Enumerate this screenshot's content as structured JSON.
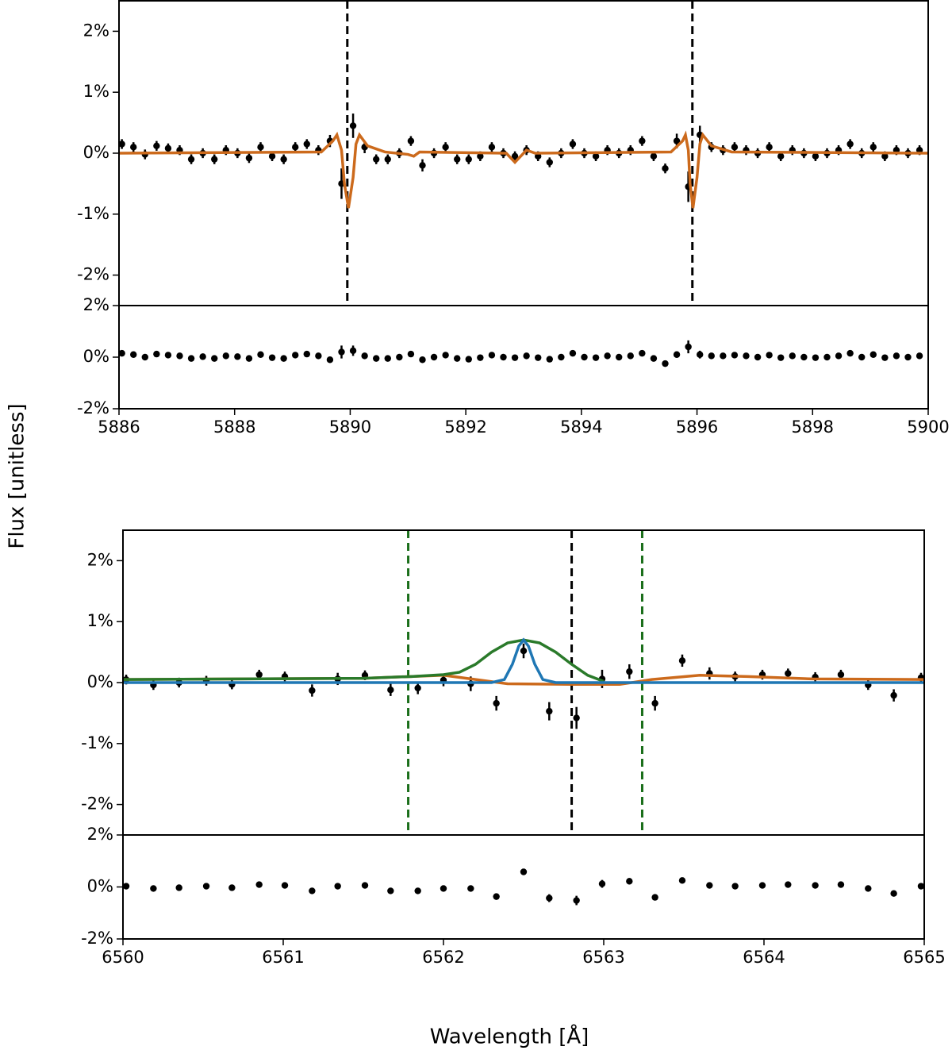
{
  "chart_data": [
    {
      "type": "line",
      "ylabel": "Flux [unitless]",
      "xlim": [
        5886,
        5900
      ],
      "ylim": [
        -2.5,
        2.5
      ],
      "yticks": [
        {
          "value": -2,
          "label": "-2%"
        },
        {
          "value": -1,
          "label": "-1%"
        },
        {
          "value": 0,
          "label": "0%"
        },
        {
          "value": 1,
          "label": "1%"
        },
        {
          "value": 2,
          "label": "2%"
        }
      ],
      "vlines": [
        {
          "x": 5889.95,
          "color": "#000000"
        },
        {
          "x": 5895.92,
          "color": "#000000"
        }
      ],
      "points": {
        "color": "#000000",
        "x": [
          5886.05,
          5886.25,
          5886.45,
          5886.65,
          5886.85,
          5887.05,
          5887.25,
          5887.45,
          5887.65,
          5887.85,
          5888.05,
          5888.25,
          5888.45,
          5888.65,
          5888.85,
          5889.05,
          5889.25,
          5889.45,
          5889.65,
          5889.85,
          5890.05,
          5890.25,
          5890.45,
          5890.65,
          5890.85,
          5891.05,
          5891.25,
          5891.45,
          5891.65,
          5891.85,
          5892.05,
          5892.25,
          5892.45,
          5892.65,
          5892.85,
          5893.05,
          5893.25,
          5893.45,
          5893.65,
          5893.85,
          5894.05,
          5894.25,
          5894.45,
          5894.65,
          5894.85,
          5895.05,
          5895.25,
          5895.45,
          5895.65,
          5895.85,
          5896.05,
          5896.25,
          5896.45,
          5896.65,
          5896.85,
          5897.05,
          5897.25,
          5897.45,
          5897.65,
          5897.85,
          5898.05,
          5898.25,
          5898.45,
          5898.65,
          5898.85,
          5899.05,
          5899.25,
          5899.45,
          5899.65,
          5899.85
        ],
        "values": [
          0.15,
          0.1,
          -0.02,
          0.12,
          0.08,
          0.05,
          -0.1,
          0,
          -0.1,
          0.05,
          0,
          -0.08,
          0.1,
          -0.05,
          -0.1,
          0.1,
          0.15,
          0.05,
          0.2,
          -0.5,
          0.45,
          0.1,
          -0.1,
          -0.1,
          0,
          0.2,
          -0.2,
          0,
          0.1,
          -0.1,
          -0.1,
          -0.05,
          0.1,
          0,
          -0.05,
          0.05,
          -0.05,
          -0.15,
          0,
          0.15,
          0,
          -0.05,
          0.05,
          0,
          0.05,
          0.2,
          -0.05,
          -0.25,
          0.2,
          -0.55,
          0.3,
          0.1,
          0.05,
          0.1,
          0.05,
          0,
          0.1,
          -0.05,
          0.05,
          0,
          -0.05,
          0,
          0.05,
          0.15,
          0,
          0.1,
          -0.05,
          0.05,
          0,
          0.05
        ],
        "errors": [
          0.08,
          0.08,
          0.08,
          0.08,
          0.08,
          0.08,
          0.08,
          0.08,
          0.08,
          0.08,
          0.08,
          0.08,
          0.08,
          0.08,
          0.08,
          0.08,
          0.08,
          0.08,
          0.1,
          0.25,
          0.2,
          0.1,
          0.08,
          0.08,
          0.08,
          0.08,
          0.1,
          0.08,
          0.08,
          0.08,
          0.08,
          0.08,
          0.08,
          0.08,
          0.08,
          0.08,
          0.08,
          0.08,
          0.08,
          0.08,
          0.08,
          0.08,
          0.08,
          0.08,
          0.08,
          0.08,
          0.08,
          0.08,
          0.12,
          0.25,
          0.15,
          0.08,
          0.08,
          0.08,
          0.08,
          0.08,
          0.08,
          0.08,
          0.08,
          0.08,
          0.08,
          0.08,
          0.08,
          0.08,
          0.08,
          0.08,
          0.08,
          0.08,
          0.08,
          0.08
        ]
      },
      "series": [
        {
          "color": "#cc6a1c",
          "x": [
            5886,
            5889.5,
            5889.7,
            5889.77,
            5889.85,
            5889.9,
            5889.97,
            5890.05,
            5890.1,
            5890.16,
            5890.3,
            5890.6,
            5891.0,
            5891.1,
            5891.2,
            5892.7,
            5892.85,
            5892.95,
            5893.05,
            5893.2,
            5895.55,
            5895.75,
            5895.8,
            5895.85,
            5895.88,
            5895.93,
            5896.0,
            5896.05,
            5896.1,
            5896.25,
            5896.6,
            5900
          ],
          "values": [
            0,
            0.02,
            0.2,
            0.3,
            0.05,
            -0.5,
            -0.9,
            -0.4,
            0.15,
            0.3,
            0.12,
            0.02,
            -0.02,
            -0.05,
            0.02,
            0,
            -0.15,
            -0.05,
            0.05,
            0,
            0.02,
            0.2,
            0.3,
            0.05,
            -0.5,
            -0.9,
            -0.4,
            0.15,
            0.3,
            0.12,
            0.02,
            0
          ]
        }
      ]
    },
    {
      "type": "scatter",
      "xlim": [
        5886,
        5900
      ],
      "ylim": [
        -2,
        2
      ],
      "yticks": [
        {
          "value": -2,
          "label": "-2%"
        },
        {
          "value": 0,
          "label": "0%"
        },
        {
          "value": 2,
          "label": "2%"
        }
      ],
      "xticks": [
        5886,
        5888,
        5890,
        5892,
        5894,
        5896,
        5898,
        5900
      ],
      "points": {
        "color": "#000000",
        "x": [
          5886.05,
          5886.25,
          5886.45,
          5886.65,
          5886.85,
          5887.05,
          5887.25,
          5887.45,
          5887.65,
          5887.85,
          5888.05,
          5888.25,
          5888.45,
          5888.65,
          5888.85,
          5889.05,
          5889.25,
          5889.45,
          5889.65,
          5889.85,
          5890.05,
          5890.25,
          5890.45,
          5890.65,
          5890.85,
          5891.05,
          5891.25,
          5891.45,
          5891.65,
          5891.85,
          5892.05,
          5892.25,
          5892.45,
          5892.65,
          5892.85,
          5893.05,
          5893.25,
          5893.45,
          5893.65,
          5893.85,
          5894.05,
          5894.25,
          5894.45,
          5894.65,
          5894.85,
          5895.05,
          5895.25,
          5895.45,
          5895.65,
          5895.85,
          5896.05,
          5896.25,
          5896.45,
          5896.65,
          5896.85,
          5897.05,
          5897.25,
          5897.45,
          5897.65,
          5897.85,
          5898.05,
          5898.25,
          5898.45,
          5898.65,
          5898.85,
          5899.05,
          5899.25,
          5899.45,
          5899.65,
          5899.85
        ],
        "values": [
          0.15,
          0.1,
          0,
          0.12,
          0.08,
          0.05,
          -0.05,
          0.02,
          -0.05,
          0.05,
          0.02,
          -0.05,
          0.1,
          -0.02,
          -0.05,
          0.08,
          0.12,
          0.05,
          -0.1,
          0.2,
          0.25,
          0.05,
          -0.05,
          -0.05,
          0,
          0.12,
          -0.1,
          0,
          0.08,
          -0.05,
          -0.08,
          -0.02,
          0.08,
          0,
          -0.02,
          0.05,
          -0.02,
          -0.08,
          0,
          0.15,
          0,
          -0.02,
          0.05,
          0,
          0.05,
          0.15,
          -0.05,
          -0.25,
          0.1,
          0.4,
          0.1,
          0.05,
          0.05,
          0.08,
          0.05,
          0,
          0.08,
          -0.02,
          0.05,
          0,
          -0.02,
          0,
          0.05,
          0.15,
          0,
          0.1,
          -0.02,
          0.05,
          0,
          0.05
        ],
        "errors": [
          0.08,
          0.08,
          0.08,
          0.08,
          0.08,
          0.08,
          0.08,
          0.08,
          0.08,
          0.08,
          0.08,
          0.08,
          0.08,
          0.08,
          0.08,
          0.08,
          0.08,
          0.08,
          0.1,
          0.25,
          0.2,
          0.1,
          0.08,
          0.08,
          0.08,
          0.08,
          0.1,
          0.08,
          0.08,
          0.08,
          0.08,
          0.08,
          0.08,
          0.08,
          0.08,
          0.08,
          0.08,
          0.08,
          0.08,
          0.08,
          0.08,
          0.08,
          0.08,
          0.08,
          0.08,
          0.08,
          0.08,
          0.08,
          0.12,
          0.25,
          0.15,
          0.08,
          0.08,
          0.08,
          0.08,
          0.08,
          0.08,
          0.08,
          0.08,
          0.08,
          0.08,
          0.08,
          0.08,
          0.08,
          0.08,
          0.08,
          0.08,
          0.08,
          0.08,
          0.08
        ]
      }
    },
    {
      "type": "line",
      "xlim": [
        6560,
        6565
      ],
      "ylim": [
        -2.5,
        2.5
      ],
      "yticks": [
        {
          "value": -2,
          "label": "-2%"
        },
        {
          "value": -1,
          "label": "-1%"
        },
        {
          "value": 0,
          "label": "0%"
        },
        {
          "value": 1,
          "label": "1%"
        },
        {
          "value": 2,
          "label": "2%"
        }
      ],
      "vlines": [
        {
          "x": 6561.78,
          "color": "#1a6e1a"
        },
        {
          "x": 6562.8,
          "color": "#000000"
        },
        {
          "x": 6563.24,
          "color": "#1a6e1a"
        }
      ],
      "points": {
        "color": "#000000",
        "x": [
          6560.02,
          6560.19,
          6560.35,
          6560.52,
          6560.68,
          6560.85,
          6561.01,
          6561.18,
          6561.34,
          6561.51,
          6561.67,
          6561.84,
          6562.0,
          6562.17,
          6562.33,
          6562.5,
          6562.66,
          6562.83,
          6562.99,
          6563.16,
          6563.32,
          6563.49,
          6563.66,
          6563.82,
          6563.99,
          6564.15,
          6564.32,
          6564.48,
          6564.65,
          6564.81,
          6564.98
        ],
        "values": [
          0.05,
          -0.04,
          0,
          0.03,
          -0.03,
          0.13,
          0.1,
          -0.13,
          0.06,
          0.12,
          -0.12,
          -0.09,
          0.04,
          -0.02,
          -0.34,
          0.52,
          -0.47,
          -0.58,
          0.06,
          0.18,
          -0.34,
          0.36,
          0.15,
          0.1,
          0.13,
          0.15,
          0.09,
          0.13,
          -0.04,
          -0.21,
          0.08
        ],
        "errors": [
          0.08,
          0.08,
          0.08,
          0.08,
          0.08,
          0.08,
          0.08,
          0.1,
          0.1,
          0.08,
          0.1,
          0.1,
          0.1,
          0.12,
          0.12,
          0.12,
          0.15,
          0.18,
          0.15,
          0.12,
          0.12,
          0.1,
          0.1,
          0.08,
          0.08,
          0.08,
          0.08,
          0.08,
          0.08,
          0.1,
          0.08
        ]
      },
      "series": [
        {
          "color": "#cc6a1c",
          "x": [
            6560,
            6561.5,
            6561.8,
            6562.0,
            6562.2,
            6562.4,
            6562.8,
            6563.1,
            6563.3,
            6563.6,
            6563.9,
            6564.3,
            6565
          ],
          "values": [
            0.05,
            0.07,
            0.1,
            0.12,
            0.05,
            -0.02,
            -0.03,
            -0.03,
            0.05,
            0.12,
            0.1,
            0.06,
            0.05
          ]
        },
        {
          "color": "#2a7a2a",
          "x": [
            6560,
            6561.5,
            6561.8,
            6562.0,
            6562.1,
            6562.2,
            6562.3,
            6562.4,
            6562.5,
            6562.6,
            6562.7,
            6562.8,
            6562.9,
            6563.0
          ],
          "values": [
            0.05,
            0.07,
            0.1,
            0.13,
            0.17,
            0.3,
            0.5,
            0.65,
            0.7,
            0.65,
            0.5,
            0.3,
            0.12,
            0.02
          ]
        },
        {
          "color": "#1f77b4",
          "x": [
            6560,
            6562.3,
            6562.38,
            6562.43,
            6562.47,
            6562.5,
            6562.53,
            6562.57,
            6562.62,
            6562.7,
            6565
          ],
          "values": [
            0,
            0,
            0.05,
            0.3,
            0.6,
            0.7,
            0.6,
            0.3,
            0.05,
            0,
            0
          ]
        }
      ]
    },
    {
      "type": "scatter",
      "xlabel": "Wavelength [Å]",
      "xlim": [
        6560,
        6565
      ],
      "ylim": [
        -2,
        2
      ],
      "yticks": [
        {
          "value": -2,
          "label": "-2%"
        },
        {
          "value": 0,
          "label": "0%"
        },
        {
          "value": 2,
          "label": "2%"
        }
      ],
      "xticks": [
        6560,
        6561,
        6562,
        6563,
        6564,
        6565
      ],
      "points": {
        "color": "#000000",
        "x": [
          6560.02,
          6560.19,
          6560.35,
          6560.52,
          6560.68,
          6560.85,
          6561.01,
          6561.18,
          6561.34,
          6561.51,
          6561.67,
          6561.84,
          6562.0,
          6562.17,
          6562.33,
          6562.5,
          6562.66,
          6562.83,
          6562.99,
          6563.16,
          6563.32,
          6563.49,
          6563.66,
          6563.82,
          6563.99,
          6564.15,
          6564.32,
          6564.48,
          6564.65,
          6564.81,
          6564.98
        ],
        "values": [
          0.03,
          -0.06,
          -0.03,
          0.03,
          -0.03,
          0.09,
          0.06,
          -0.15,
          0.03,
          0.06,
          -0.15,
          -0.15,
          -0.06,
          -0.06,
          -0.37,
          0.58,
          -0.43,
          -0.52,
          0.12,
          0.22,
          -0.4,
          0.25,
          0.06,
          0.03,
          0.06,
          0.09,
          0.06,
          0.09,
          -0.06,
          -0.25,
          0.03
        ],
        "errors": [
          0.08,
          0.08,
          0.08,
          0.08,
          0.08,
          0.08,
          0.08,
          0.1,
          0.1,
          0.08,
          0.1,
          0.1,
          0.1,
          0.12,
          0.12,
          0.12,
          0.15,
          0.18,
          0.15,
          0.12,
          0.12,
          0.1,
          0.1,
          0.08,
          0.08,
          0.08,
          0.08,
          0.08,
          0.08,
          0.1,
          0.08
        ]
      }
    }
  ]
}
